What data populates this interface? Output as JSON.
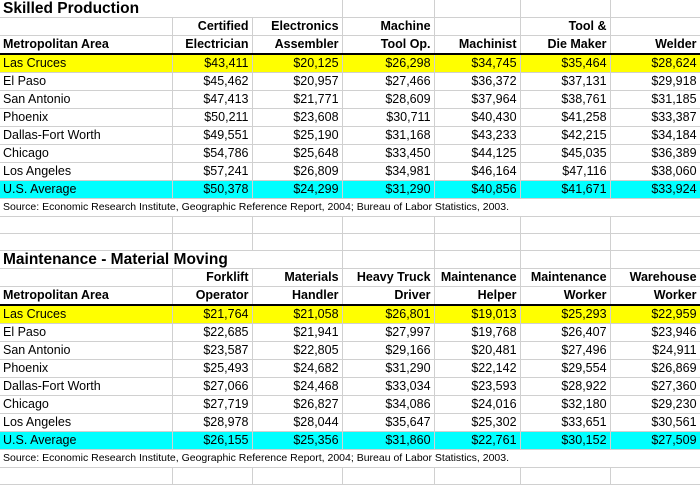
{
  "skilled": {
    "title": "Skilled Production",
    "header_top": [
      "",
      "Certified",
      "Electronics",
      "Machine",
      "",
      "Tool &",
      ""
    ],
    "header_bottom": [
      "Metropolitan Area",
      "Electrician",
      "Assembler",
      "Tool Op.",
      "Machinist",
      "Die Maker",
      "Welder"
    ],
    "rows": [
      [
        "Las Cruces",
        "$43,411",
        "$20,125",
        "$26,298",
        "$34,745",
        "$35,464",
        "$28,624"
      ],
      [
        "El Paso",
        "$45,462",
        "$20,957",
        "$27,466",
        "$36,372",
        "$37,131",
        "$29,918"
      ],
      [
        "San Antonio",
        "$47,413",
        "$21,771",
        "$28,609",
        "$37,964",
        "$38,761",
        "$31,185"
      ],
      [
        "Phoenix",
        "$50,211",
        "$23,608",
        "$30,711",
        "$40,430",
        "$41,258",
        "$33,387"
      ],
      [
        "Dallas-Fort Worth",
        "$49,551",
        "$25,190",
        "$31,168",
        "$43,233",
        "$42,215",
        "$34,184"
      ],
      [
        "Chicago",
        "$54,786",
        "$25,648",
        "$33,450",
        "$44,125",
        "$45,035",
        "$36,389"
      ],
      [
        "Los Angeles",
        "$57,241",
        "$26,809",
        "$34,981",
        "$46,164",
        "$47,116",
        "$38,060"
      ],
      [
        "U.S. Average",
        "$50,378",
        "$24,299",
        "$31,290",
        "$40,856",
        "$41,671",
        "$33,924"
      ]
    ],
    "source": "Source:  Economic Research Institute, Geographic Reference Report, 2004; Bureau of Labor Statistics, 2003."
  },
  "maintenance": {
    "title": "Maintenance - Material Moving",
    "header_top": [
      "",
      "Forklift",
      "Materials",
      "Heavy Truck",
      "Maintenance",
      "Maintenance",
      "Warehouse"
    ],
    "header_bottom": [
      "Metropolitan Area",
      "Operator",
      "Handler",
      "Driver",
      "Helper",
      "Worker",
      "Worker"
    ],
    "rows": [
      [
        "Las Cruces",
        "$21,764",
        "$21,058",
        "$26,801",
        "$19,013",
        "$25,293",
        "$22,959"
      ],
      [
        "El Paso",
        "$22,685",
        "$21,941",
        "$27,997",
        "$19,768",
        "$26,407",
        "$23,946"
      ],
      [
        "San Antonio",
        "$23,587",
        "$22,805",
        "$29,166",
        "$20,481",
        "$27,496",
        "$24,911"
      ],
      [
        "Phoenix",
        "$25,493",
        "$24,682",
        "$31,290",
        "$22,142",
        "$29,554",
        "$26,869"
      ],
      [
        "Dallas-Fort Worth",
        "$27,066",
        "$24,468",
        "$33,034",
        "$23,593",
        "$28,922",
        "$27,360"
      ],
      [
        "Chicago",
        "$27,719",
        "$26,827",
        "$34,086",
        "$24,016",
        "$32,180",
        "$29,230"
      ],
      [
        "Los Angeles",
        "$28,978",
        "$28,044",
        "$35,647",
        "$25,302",
        "$33,651",
        "$30,561"
      ],
      [
        "U.S. Average",
        "$26,155",
        "$25,356",
        "$31,860",
        "$22,761",
        "$30,152",
        "$27,509"
      ]
    ],
    "source": "Source:  Economic Research Institute, Geographic Reference Report, 2004; Bureau of Labor Statistics, 2003."
  },
  "colors": {
    "las_cruces_highlight": "#ffff00",
    "us_average_highlight": "#00ffff",
    "gridline": "#d0d0d0"
  }
}
